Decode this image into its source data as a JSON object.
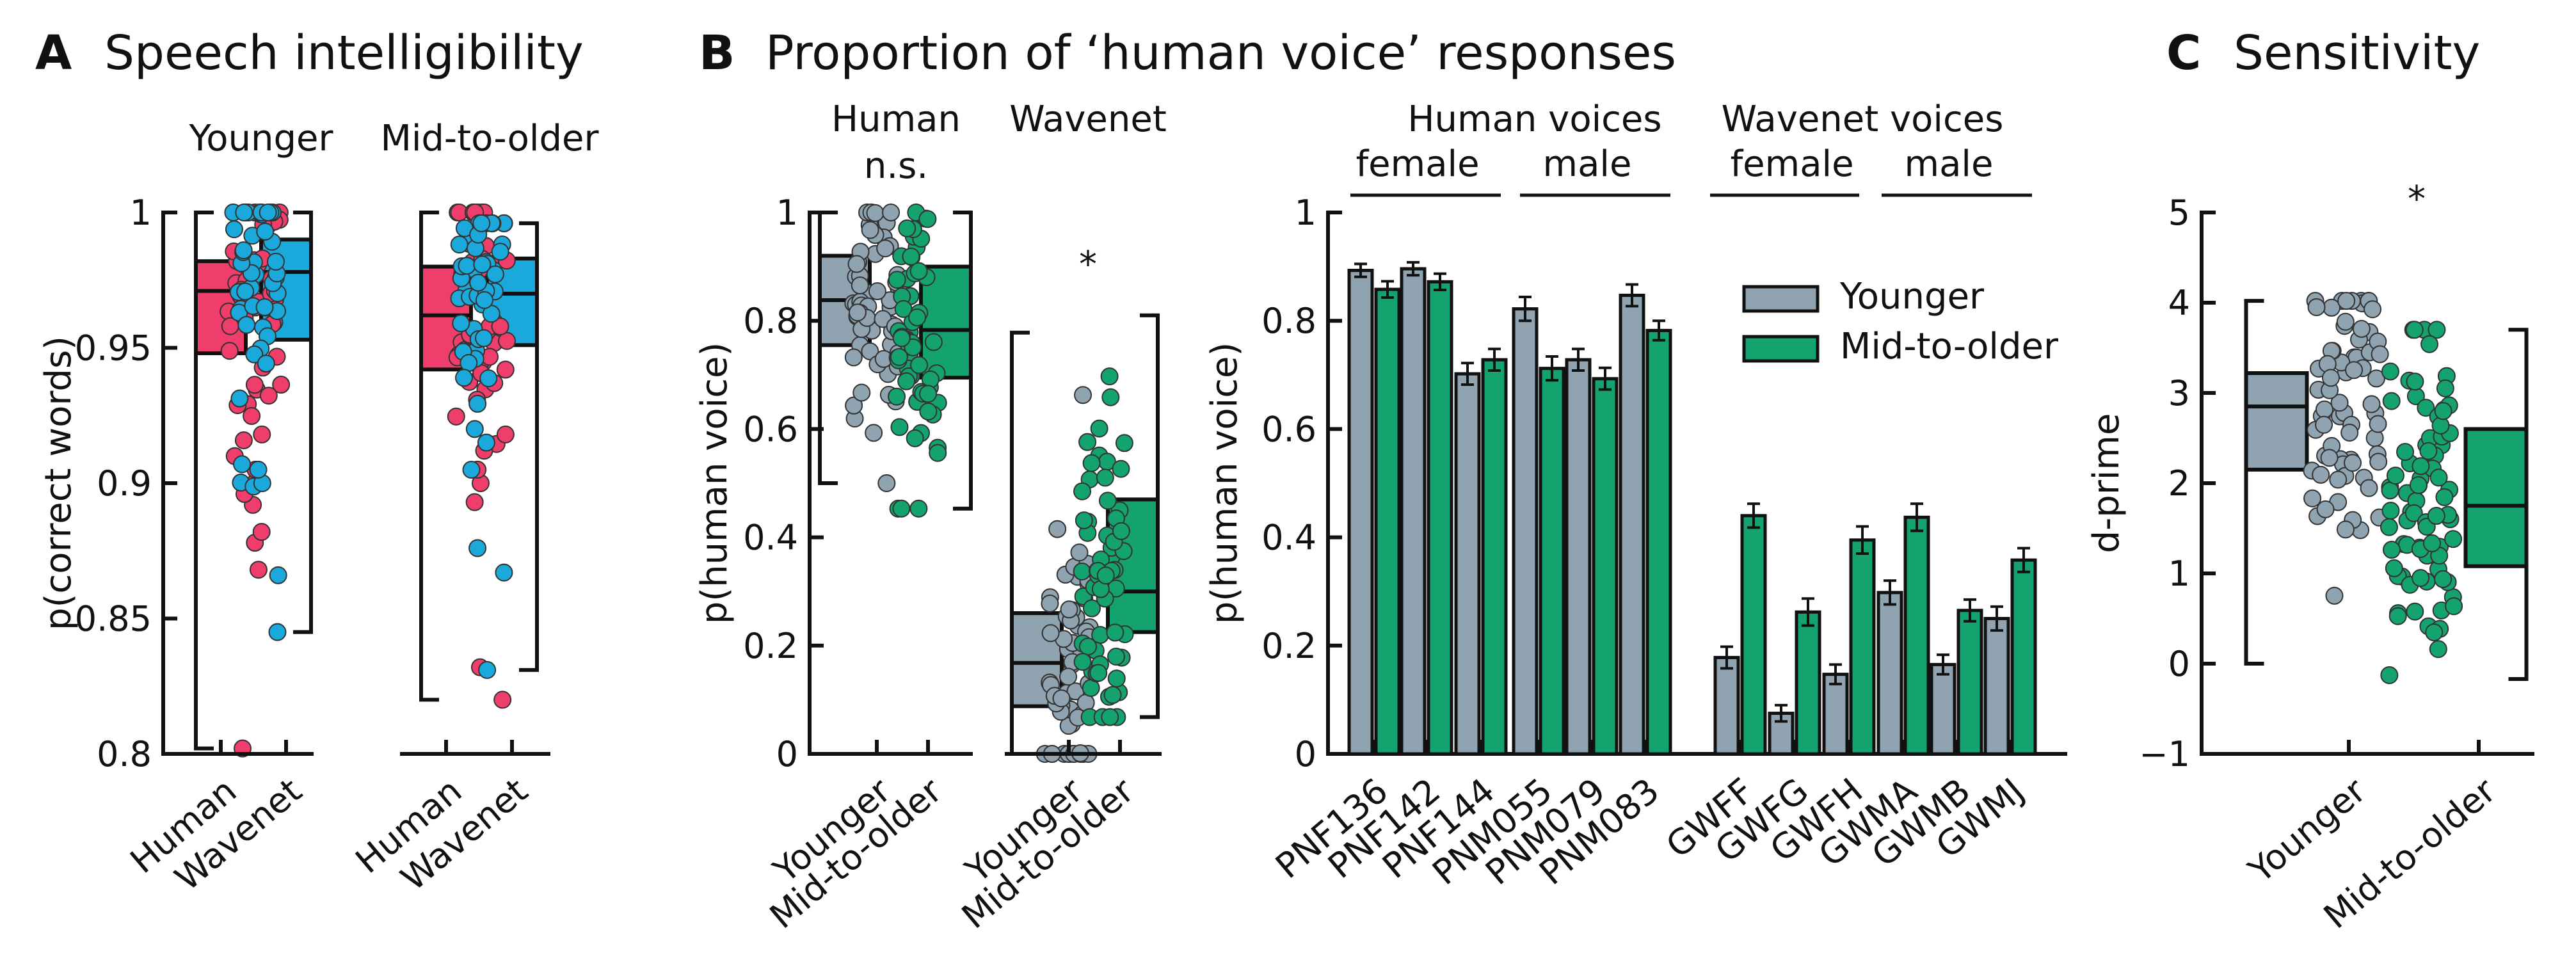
{
  "colors": {
    "human_younger": "#ef3e6b",
    "wavenet_younger": "#1ba9dc",
    "younger_gray": "#90a3b0",
    "older_green": "#14a36f"
  },
  "panels": {
    "A": {
      "letter": "A",
      "title": "Speech intelligibility"
    },
    "B": {
      "letter": "B",
      "title": "Proportion of ‘human voice’ responses"
    },
    "C": {
      "letter": "C",
      "title": "Sensitivity"
    }
  },
  "chart_data": [
    {
      "id": "A",
      "type": "box",
      "title": "Speech intelligibility",
      "ylabel": "p(correct words)",
      "ylim": [
        0.8,
        1.0
      ],
      "yticks": [
        0.8,
        0.85,
        0.9,
        0.95,
        1
      ],
      "yticklabels": [
        "0.8",
        "0.85",
        "0.9",
        "0.95",
        "1"
      ],
      "groups": [
        {
          "label": "Younger",
          "boxes": [
            {
              "category": "Human",
              "color": "#ef3e6b",
              "q1": 0.948,
              "median": 0.971,
              "q3": 0.982,
              "whisker_low": 0.802,
              "whisker_high": 1.0,
              "side": "left"
            },
            {
              "category": "Wavenet",
              "color": "#1ba9dc",
              "q1": 0.953,
              "median": 0.978,
              "q3": 0.99,
              "whisker_low": 0.845,
              "whisker_high": 1.0,
              "side": "right"
            }
          ]
        },
        {
          "label": "Mid-to-older",
          "boxes": [
            {
              "category": "Human",
              "color": "#ef3e6b",
              "q1": 0.942,
              "median": 0.962,
              "q3": 0.98,
              "whisker_low": 0.82,
              "whisker_high": 1.0,
              "side": "left"
            },
            {
              "category": "Wavenet",
              "color": "#1ba9dc",
              "q1": 0.951,
              "median": 0.97,
              "q3": 0.983,
              "whisker_low": 0.831,
              "whisker_high": 0.996,
              "side": "right"
            }
          ]
        }
      ],
      "xticklabels": [
        "Human",
        "Wavenet",
        "Human",
        "Wavenet"
      ],
      "outliers_visible": {
        "younger_human": [
          0.802,
          0.878,
          0.882,
          0.892,
          0.896,
          0.9,
          0.905,
          0.91,
          0.918
        ],
        "younger_wavenet": [
          0.845,
          0.866,
          0.9,
          0.905,
          0.907
        ],
        "older_human": [
          0.82,
          0.832,
          0.893,
          0.9,
          0.905,
          0.912,
          0.918
        ],
        "older_wavenet": [
          0.831,
          0.867,
          0.876,
          0.915,
          0.92
        ]
      }
    },
    {
      "id": "B-left",
      "type": "box",
      "ylabel": "p(human voice)",
      "ylim": [
        0,
        1
      ],
      "yticks": [
        0,
        0.2,
        0.4,
        0.6,
        0.8,
        1
      ],
      "yticklabels": [
        "0",
        "0.2",
        "0.4",
        "0.6",
        "0.8",
        "1"
      ],
      "groups": [
        {
          "label": "Human",
          "annotation": "n.s.",
          "boxes": [
            {
              "category": "Younger",
              "color": "#90a3b0",
              "q1": 0.755,
              "median": 0.838,
              "q3": 0.92,
              "whisker_low": 0.5,
              "whisker_high": 1.0,
              "side": "left"
            },
            {
              "category": "Mid-to-older",
              "color": "#14a36f",
              "q1": 0.695,
              "median": 0.783,
              "q3": 0.9,
              "whisker_low": 0.453,
              "whisker_high": 1.0,
              "side": "right"
            }
          ]
        },
        {
          "label": "Wavenet",
          "annotation": "*",
          "boxes": [
            {
              "category": "Younger",
              "color": "#90a3b0",
              "q1": 0.088,
              "median": 0.168,
              "q3": 0.26,
              "whisker_low": 0.0,
              "whisker_high": 0.778,
              "side": "left"
            },
            {
              "category": "Mid-to-older",
              "color": "#14a36f",
              "q1": 0.225,
              "median": 0.3,
              "q3": 0.47,
              "whisker_low": 0.068,
              "whisker_high": 0.81,
              "side": "right"
            }
          ]
        }
      ],
      "xticklabels": [
        "Younger",
        "Mid-to-older",
        "Younger",
        "Mid-to-older"
      ]
    },
    {
      "id": "B-right",
      "type": "bar",
      "ylabel": "p(human voice)",
      "ylim": [
        0,
        1
      ],
      "yticks": [
        0,
        0.2,
        0.4,
        0.6,
        0.8,
        1
      ],
      "yticklabels": [
        "0",
        "0.2",
        "0.4",
        "0.6",
        "0.8",
        "1"
      ],
      "categories": [
        "PNF136",
        "PNF142",
        "PNF144",
        "PNM055",
        "PNM079",
        "PNM083",
        "GWFF",
        "GWFG",
        "GWFH",
        "GWMA",
        "GWMB",
        "GWMJ"
      ],
      "category_groups": [
        {
          "header": "Human voices",
          "subheaders": [
            "female",
            "male"
          ]
        },
        {
          "header": "Wavenet voices",
          "subheaders": [
            "female",
            "male"
          ]
        }
      ],
      "series": [
        {
          "name": "Younger",
          "color": "#90a3b0",
          "values": [
            0.893,
            0.896,
            0.702,
            0.822,
            0.728,
            0.847,
            0.178,
            0.075,
            0.147,
            0.298,
            0.165,
            0.25
          ],
          "errors": [
            0.012,
            0.012,
            0.02,
            0.022,
            0.02,
            0.02,
            0.02,
            0.015,
            0.018,
            0.022,
            0.018,
            0.022
          ]
        },
        {
          "name": "Mid-to-older",
          "color": "#14a36f",
          "values": [
            0.858,
            0.872,
            0.728,
            0.712,
            0.693,
            0.782,
            0.44,
            0.262,
            0.395,
            0.437,
            0.265,
            0.358
          ],
          "errors": [
            0.015,
            0.015,
            0.02,
            0.022,
            0.02,
            0.018,
            0.022,
            0.025,
            0.025,
            0.025,
            0.02,
            0.022
          ]
        }
      ],
      "legend": [
        "Younger",
        "Mid-to-older"
      ],
      "legend_position": "top-right"
    },
    {
      "id": "C",
      "type": "box",
      "title": "Sensitivity",
      "ylabel": "d-prime",
      "ylim": [
        -1,
        5
      ],
      "yticks": [
        -1,
        0,
        1,
        2,
        3,
        4,
        5
      ],
      "yticklabels": [
        "−1",
        "0",
        "1",
        "2",
        "3",
        "4",
        "5"
      ],
      "annotation": "*",
      "boxes": [
        {
          "category": "Younger",
          "color": "#90a3b0",
          "q1": 2.15,
          "median": 2.85,
          "q3": 3.22,
          "whisker_low": 0.0,
          "whisker_high": 4.02,
          "side": "left"
        },
        {
          "category": "Mid-to-older",
          "color": "#14a36f",
          "q1": 1.08,
          "median": 1.75,
          "q3": 2.6,
          "whisker_low": -0.17,
          "whisker_high": 3.7,
          "side": "right"
        }
      ],
      "xticklabels": [
        "Younger",
        "Mid-to-older"
      ]
    }
  ]
}
